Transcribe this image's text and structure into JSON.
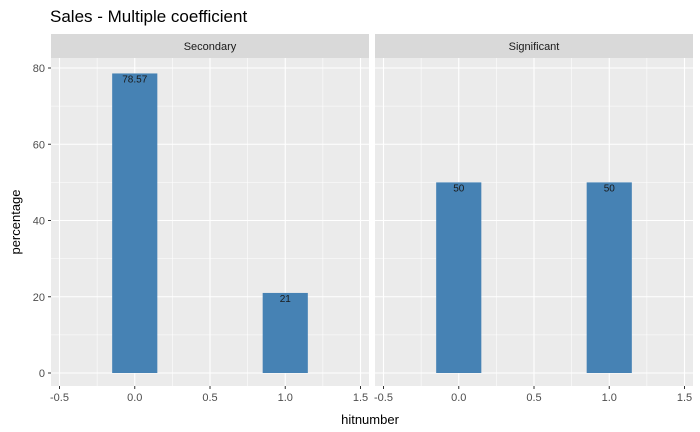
{
  "chart_data": {
    "type": "bar",
    "title": "Sales - Multiple coefficient",
    "xlabel": "hitnumber",
    "ylabel": "percentage",
    "facets": [
      {
        "name": "Secondary",
        "x": [
          0.0,
          1.0
        ],
        "values": [
          78.57,
          21
        ],
        "labels": [
          "78.57",
          "21"
        ]
      },
      {
        "name": "Significant",
        "x": [
          0.0,
          1.0
        ],
        "values": [
          50,
          50
        ],
        "labels": [
          "50",
          "50"
        ]
      }
    ],
    "xlim": [
      -0.5,
      1.5
    ],
    "ylim": [
      0,
      80
    ],
    "x_ticks": [
      -0.5,
      0.0,
      0.5,
      1.0,
      1.5
    ],
    "x_tick_labels": [
      "-0.5",
      "0.0",
      "0.5",
      "1.0",
      "1.5"
    ],
    "y_ticks": [
      0,
      20,
      40,
      60,
      80
    ],
    "y_tick_labels": [
      "0",
      "20",
      "40",
      "60",
      "80"
    ],
    "grid": true,
    "bar_width": 0.3,
    "colors": {
      "bar": "#4682b4",
      "panel_background": "#ebebeb",
      "strip_background": "#d9d9d9",
      "grid": "#ffffff"
    }
  }
}
